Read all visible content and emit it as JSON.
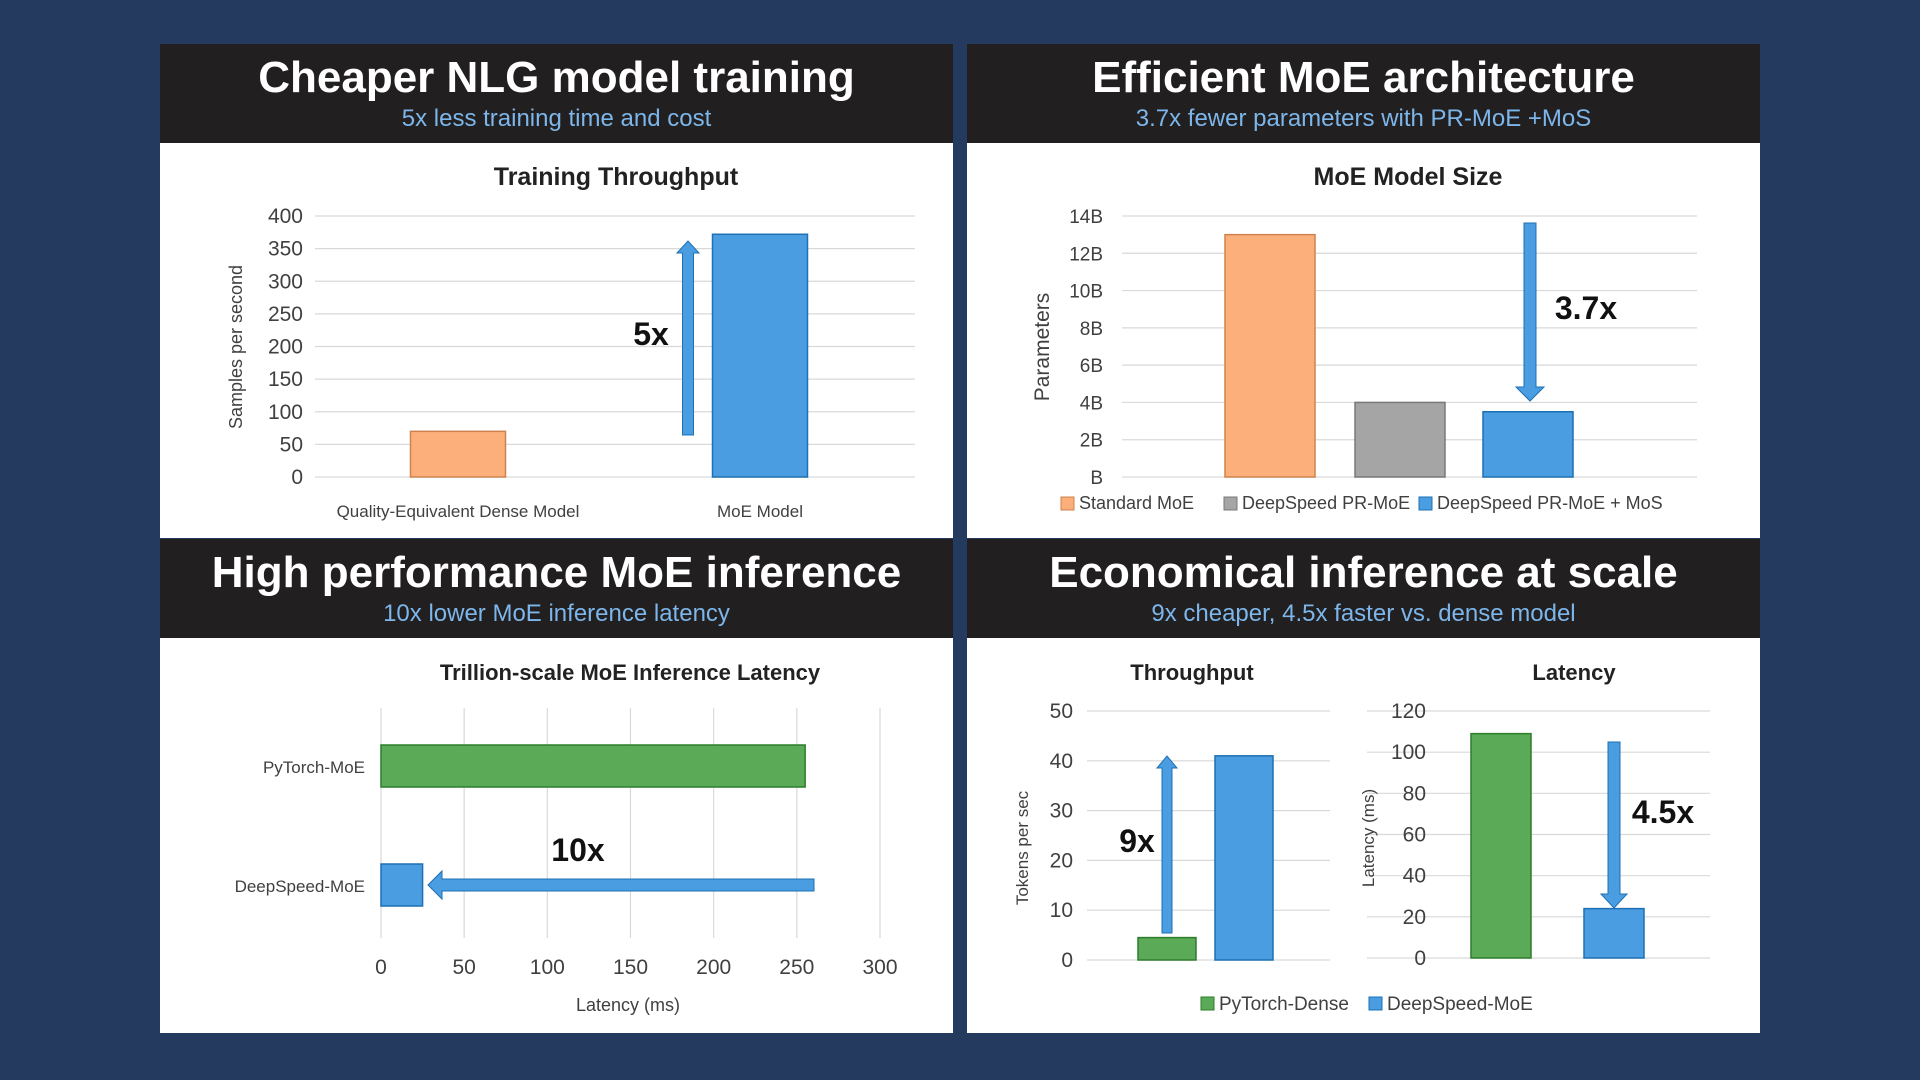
{
  "colors": {
    "background": "#243a5e",
    "header_bg": "#221f20",
    "subtitle": "#7cb6ea",
    "orange": "#fcaf7a",
    "gray": "#a5a5a5",
    "blue": "#4a9de0",
    "green": "#5aaa58",
    "grid": "#d9d9d9"
  },
  "panels": [
    {
      "title": "Cheaper NLG model training",
      "subtitle": "5x less training time and cost"
    },
    {
      "title": "Efficient MoE architecture",
      "subtitle": "3.7x fewer parameters with PR-MoE +MoS"
    },
    {
      "title": "High performance MoE inference",
      "subtitle": "10x lower MoE inference latency"
    },
    {
      "title": "Economical inference at scale",
      "subtitle": "9x cheaper, 4.5x faster vs. dense model"
    }
  ],
  "chart_data": [
    {
      "type": "bar",
      "title": "Training Throughput",
      "ylabel": "Samples per second",
      "xlabel": "",
      "ylim": [
        0,
        400
      ],
      "yticks": [
        "0",
        "50",
        "100",
        "150",
        "200",
        "250",
        "300",
        "350",
        "400"
      ],
      "categories": [
        "Quality-Equivalent Dense Model",
        "MoE Model"
      ],
      "values": [
        70,
        372
      ],
      "bar_colors": [
        "orange",
        "blue"
      ],
      "annotation": "5x",
      "grid": true
    },
    {
      "type": "bar",
      "title": "MoE Model Size",
      "ylabel": "Parameters",
      "ylim": [
        0,
        14
      ],
      "yticks": [
        "B",
        "2B",
        "4B",
        "6B",
        "8B",
        "10B",
        "12B",
        "14B"
      ],
      "series": [
        {
          "name": "Standard MoE",
          "values": [
            13
          ],
          "color": "orange"
        },
        {
          "name": "DeepSpeed PR-MoE",
          "values": [
            4
          ],
          "color": "gray"
        },
        {
          "name": "DeepSpeed PR-MoE + MoS",
          "values": [
            3.5
          ],
          "color": "blue"
        }
      ],
      "annotation": "3.7x",
      "legend": "bottom",
      "grid": true
    },
    {
      "type": "bar",
      "orientation": "horizontal",
      "title": "Trillion-scale MoE Inference Latency",
      "xlabel": "Latency (ms)",
      "xlim": [
        0,
        300
      ],
      "xticks": [
        "0",
        "50",
        "100",
        "150",
        "200",
        "250",
        "300"
      ],
      "categories": [
        "PyTorch-MoE",
        "DeepSpeed-MoE"
      ],
      "values": [
        255,
        25
      ],
      "bar_colors": [
        "green",
        "blue"
      ],
      "annotation": "10x",
      "grid": true
    },
    {
      "type": "bar",
      "title": "Throughput",
      "ylabel": "Tokens per sec",
      "ylim": [
        0,
        50
      ],
      "yticks": [
        "0",
        "10",
        "20",
        "30",
        "40",
        "50"
      ],
      "series": [
        {
          "name": "PyTorch-Dense",
          "values": [
            4.5
          ],
          "color": "green"
        },
        {
          "name": "DeepSpeed-MoE",
          "values": [
            41
          ],
          "color": "blue"
        }
      ],
      "annotation": "9x",
      "grid": true
    },
    {
      "type": "bar",
      "title": "Latency",
      "ylabel": "Latency (ms)",
      "ylim": [
        0,
        120
      ],
      "yticks": [
        "0",
        "20",
        "40",
        "60",
        "80",
        "100",
        "120"
      ],
      "series": [
        {
          "name": "PyTorch-Dense",
          "values": [
            109
          ],
          "color": "green"
        },
        {
          "name": "DeepSpeed-MoE",
          "values": [
            24
          ],
          "color": "blue"
        }
      ],
      "annotation": "4.5x",
      "legend": "bottom",
      "grid": true
    }
  ]
}
